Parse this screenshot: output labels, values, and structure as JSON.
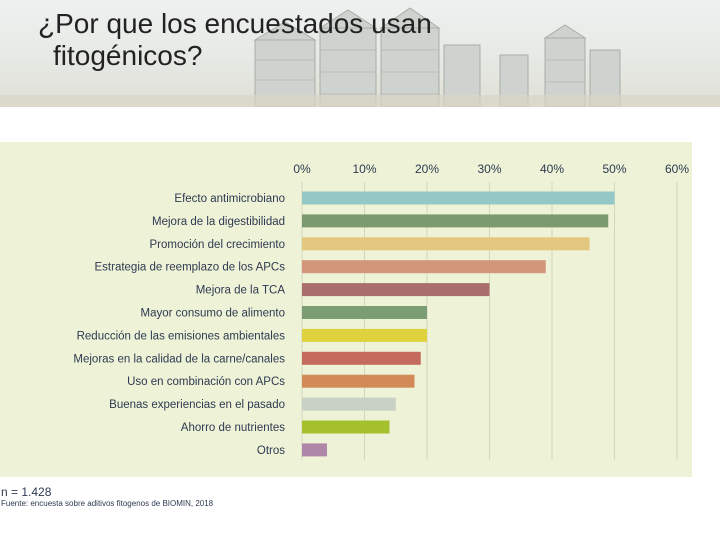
{
  "slide": {
    "title_line1": "¿Por que los encuestados usan",
    "title_line2": "fitogénicos?"
  },
  "footnote": {
    "n": "n = 1.428",
    "source": "Fuente: encuesta sobre aditivos fitogenos de BIOMIN, 2018"
  },
  "chart_data": {
    "type": "bar",
    "orientation": "horizontal",
    "title": "",
    "xlabel": "",
    "ylabel": "",
    "xlim": [
      0,
      60
    ],
    "ticks": [
      "0%",
      "10%",
      "20%",
      "30%",
      "40%",
      "50%",
      "60%"
    ],
    "tick_values": [
      0,
      10,
      20,
      30,
      40,
      50,
      60
    ],
    "axis_position": "top",
    "grid": true,
    "categories": [
      "Efecto antimicrobiano",
      "Mejora de la digestibilidad",
      "Promoción del crecimiento",
      "Estrategia de reemplazo de los APCs",
      "Mejora de la TCA",
      "Mayor consumo de alimento",
      "Reducción de las emisiones ambientales",
      "Mejoras en la calidad de la carne/canales",
      "Uso en combinación con APCs",
      "Buenas experiencias en el pasado",
      "Ahorro de nutrientes",
      "Otros"
    ],
    "values": [
      50,
      49,
      46,
      39,
      30,
      20,
      20,
      19,
      18,
      15,
      14,
      4
    ],
    "colors": [
      "#94c8c7",
      "#7b9b6e",
      "#e4c77f",
      "#d4967a",
      "#a96e6b",
      "#7c9c74",
      "#dfd23e",
      "#c46b5d",
      "#d18a58",
      "#c9d0c4",
      "#a5c02d",
      "#ad86a8"
    ]
  }
}
